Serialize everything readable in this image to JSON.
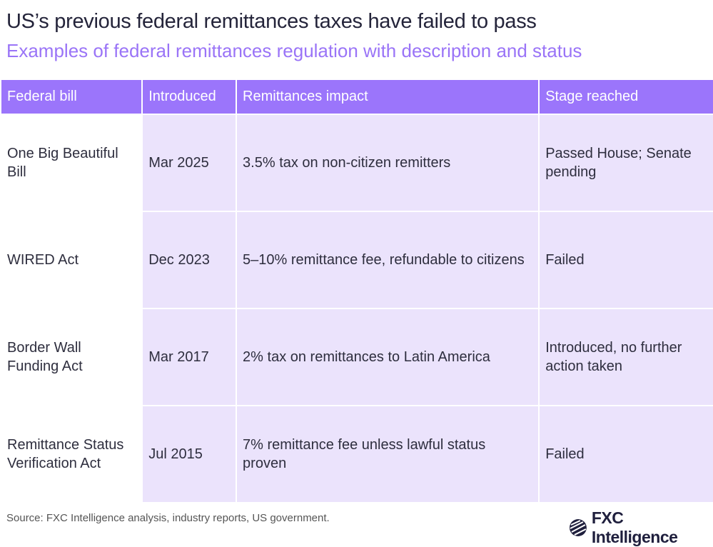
{
  "title": "US’s previous federal remittances taxes have failed to pass",
  "subtitle": "Examples of federal remittances regulation with description and status",
  "chart_data": {
    "type": "table",
    "columns": [
      "Federal bill",
      "Introduced",
      "Remittances impact",
      "Stage reached"
    ],
    "rows": [
      [
        "One Big Beautiful Bill",
        "Mar 2025",
        "3.5% tax on non-citizen remitters",
        "Passed House; Senate pending"
      ],
      [
        "WIRED Act",
        "Dec 2023",
        "5–10% remittance fee, refundable to citizens",
        "Failed"
      ],
      [
        "Border Wall Funding Act",
        "Mar 2017",
        "2% tax on remittances to Latin America",
        "Introduced, no further action taken"
      ],
      [
        "Remittance Status Verification Act",
        "Jul 2015",
        "7% remittance fee unless lawful status proven",
        "Failed"
      ]
    ]
  },
  "colors": {
    "header": "#9b75fb",
    "cell": "#ebe3fc",
    "subtitle": "#9a74f7"
  },
  "source": "Source: FXC Intelligence analysis, industry reports, US government.",
  "logo": {
    "text": "FXC Intelligence",
    "icon": "fxc-globe-icon"
  }
}
